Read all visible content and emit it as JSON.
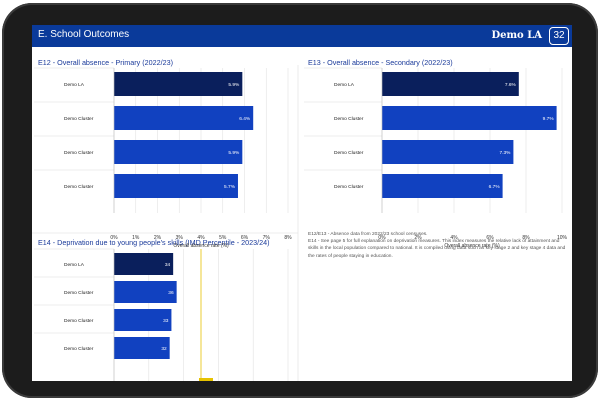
{
  "header": {
    "title": "E. School Outcomes",
    "brand": "Demo LA",
    "page_number": "32"
  },
  "footnote": {
    "line1": "E12/E13 - Absence data from 2022/23 school censuses.",
    "line2": "E14 - See page 5 for full explanation on deprivation measures. This index measures the relative lack of attainment and skills in the local population compared to national. It is compiled using data such as key stage 2 and key stage 4 data and the rates of people staying in education."
  },
  "colors": {
    "dark_navy": "#0a1f5c",
    "blue": "#1141c0",
    "header_blue": "#0a3a9a",
    "reference_line": "#e6c200"
  },
  "chart_data": [
    {
      "id": "e12",
      "type": "bar",
      "orientation": "horizontal",
      "title": "E12 - Overall absence - Primary (2022/23)",
      "categories": [
        "Demo LA",
        "Demo Cluster",
        "Demo Cluster",
        "Demo Cluster"
      ],
      "values": [
        5.9,
        6.4,
        5.9,
        5.7
      ],
      "value_labels": [
        "5.9%",
        "6.4%",
        "5.9%",
        "5.7%"
      ],
      "bar_colors": [
        "#0a1f5c",
        "#1141c0",
        "#1141c0",
        "#1141c0"
      ],
      "xlim": [
        0,
        8
      ],
      "ticks": [
        0,
        1,
        2,
        3,
        4,
        5,
        6,
        7,
        8
      ],
      "tick_labels": [
        "0%",
        "1%",
        "2%",
        "3%",
        "4%",
        "5%",
        "6%",
        "7%",
        "8%"
      ],
      "xlabel": "Overall absence rate (%)",
      "grid": true
    },
    {
      "id": "e13",
      "type": "bar",
      "orientation": "horizontal",
      "title": "E13 - Overall absence - Secondary (2022/23)",
      "categories": [
        "Demo LA",
        "Demo Cluster",
        "Demo Cluster",
        "Demo Cluster"
      ],
      "values": [
        7.6,
        9.7,
        7.3,
        6.7
      ],
      "value_labels": [
        "7.6%",
        "9.7%",
        "7.3%",
        "6.7%"
      ],
      "bar_colors": [
        "#0a1f5c",
        "#1141c0",
        "#1141c0",
        "#1141c0"
      ],
      "xlim": [
        0,
        10
      ],
      "ticks": [
        0,
        2,
        4,
        6,
        8,
        10
      ],
      "tick_labels": [
        "0%",
        "2%",
        "4%",
        "6%",
        "8%",
        "10%"
      ],
      "xlabel": "Overall absence rate (%)",
      "grid": true
    },
    {
      "id": "e14",
      "type": "bar",
      "orientation": "horizontal",
      "title": "E14 - Deprivation due to young people's skills (IMD Percentile - 2023/24)",
      "categories": [
        "Demo LA",
        "Demo Cluster",
        "Demo Cluster",
        "Demo Cluster"
      ],
      "values": [
        34,
        36,
        33,
        32
      ],
      "value_labels": [
        "34",
        "36",
        "33",
        "32"
      ],
      "bar_colors": [
        "#0a1f5c",
        "#1141c0",
        "#1141c0",
        "#1141c0"
      ],
      "xlim": [
        0,
        100
      ],
      "reference_line": 50,
      "grid": true
    }
  ]
}
